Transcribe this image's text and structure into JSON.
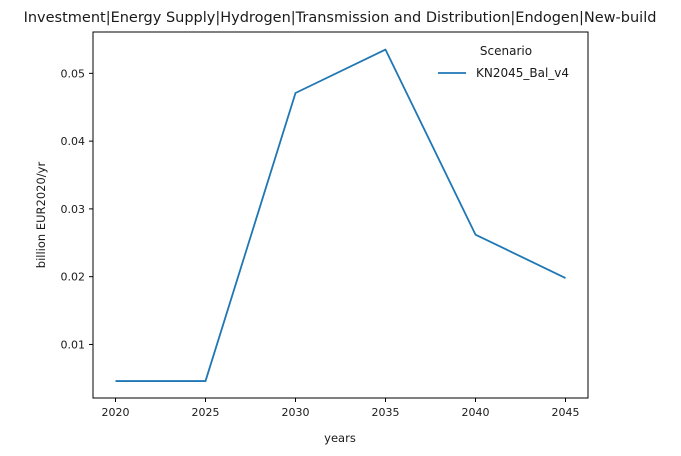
{
  "chart_data": {
    "type": "line",
    "title": "Investment|Energy Supply|Hydrogen|Transmission and Distribution|Endogen|New-build",
    "xlabel": "years",
    "ylabel": "billion EUR2020/yr",
    "x": [
      2020,
      2025,
      2030,
      2035,
      2040,
      2045
    ],
    "x_ticks": [
      "2020",
      "2025",
      "2030",
      "2035",
      "2040",
      "2045"
    ],
    "y_ticks": [
      "0.01",
      "0.02",
      "0.03",
      "0.04",
      "0.05"
    ],
    "xlim": [
      2018.75,
      2046.25
    ],
    "ylim": [
      0.0021,
      0.0561
    ],
    "grid": false,
    "legend": {
      "title": "Scenario",
      "placement": "top-right"
    },
    "series": [
      {
        "name": "KN2045_Bal_v4",
        "color": "#1f77b4",
        "values": [
          0.0046,
          0.0046,
          0.0471,
          0.0535,
          0.0262,
          0.0198
        ]
      }
    ]
  }
}
